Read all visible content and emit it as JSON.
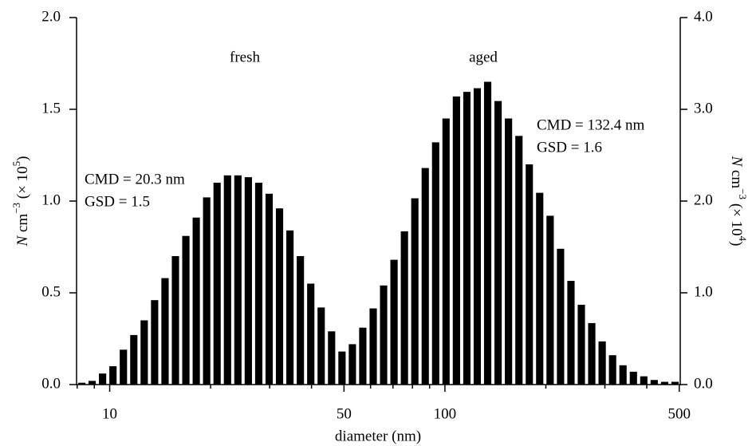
{
  "chart_data": {
    "type": "histogram",
    "x_label": "diameter (nm)",
    "y_label": [
      "N",
      " cm",
      "−3",
      " (× 10",
      "5",
      ")"
    ],
    "y2_label": [
      "N",
      " cm",
      "−3",
      " (× 10",
      "4",
      ")"
    ],
    "xscale": "log",
    "xlim": [
      7.965,
      503.4
    ],
    "xticks": [
      10,
      50,
      100,
      500
    ],
    "xminor_ticks": [
      8,
      9,
      20,
      30,
      40,
      60,
      70,
      80,
      90,
      200,
      300,
      400
    ],
    "ylim": [
      0,
      2
    ],
    "yticks": [
      {
        "value": 0,
        "label": "0.0"
      },
      0.5,
      {
        "value": 1,
        "label": "1.0"
      },
      1.5,
      {
        "value": 2,
        "label": "2.0"
      }
    ],
    "y2lim": [
      0,
      4
    ],
    "y2ticks": [
      {
        "value": 0,
        "label": "0.0"
      },
      {
        "value": 1,
        "label": "1.0"
      },
      {
        "value": 2,
        "label": "2.0"
      },
      {
        "value": 3,
        "label": "3.0"
      },
      {
        "value": 4,
        "label": "4.0"
      }
    ],
    "series": [
      {
        "name": "fresh",
        "color": "#000000",
        "bins": [
          7.965,
          8.555,
          9.189,
          9.87,
          10.6,
          11.39,
          12.23,
          13.14,
          14.11,
          15.16,
          16.28,
          17.49,
          18.78,
          20.18,
          21.67,
          23.28,
          25.0,
          26.86,
          28.85,
          30.98,
          33.28,
          35.75,
          38.4,
          41.24,
          44.3,
          47.58,
          51.11
        ],
        "values": [
          0.01,
          0.02,
          0.06,
          0.1,
          0.19,
          0.27,
          0.35,
          0.46,
          0.58,
          0.7,
          0.81,
          0.91,
          1.02,
          1.1,
          1.14,
          1.14,
          1.13,
          1.1,
          1.04,
          0.96,
          0.84,
          0.7,
          0.55,
          0.42,
          0.29,
          0.18
        ]
      },
      {
        "name": "aged",
        "color": "#000000",
        "axis": "y2",
        "bins": [
          51.11,
          54.89,
          58.96,
          63.33,
          68.02,
          73.06,
          78.47,
          84.29,
          90.53,
          97.24,
          104.4,
          112.2,
          120.5,
          129.4,
          139.0,
          149.3,
          160.4,
          172.3,
          185.0,
          198.7,
          213.5,
          229.3,
          246.3,
          264.5,
          284.1,
          305.2,
          327.8,
          352.1,
          378.2,
          406.2,
          436.3,
          468.6,
          503.4
        ],
        "values": [
          0.44,
          0.62,
          0.83,
          1.08,
          1.36,
          1.67,
          2.03,
          2.36,
          2.64,
          2.9,
          3.14,
          3.19,
          3.23,
          3.3,
          3.09,
          2.9,
          2.71,
          2.4,
          2.09,
          1.84,
          1.48,
          1.13,
          0.87,
          0.67,
          0.47,
          0.32,
          0.21,
          0.14,
          0.09,
          0.05,
          0.03,
          0.03
        ]
      }
    ],
    "annotations": [
      {
        "text": "fresh"
      },
      {
        "text": "aged"
      },
      {
        "text": "CMD = 20.3 nm"
      },
      {
        "text": "GSD = 1.5"
      },
      {
        "text": "CMD = 132.4 nm"
      },
      {
        "text": "GSD = 1.6"
      }
    ]
  }
}
